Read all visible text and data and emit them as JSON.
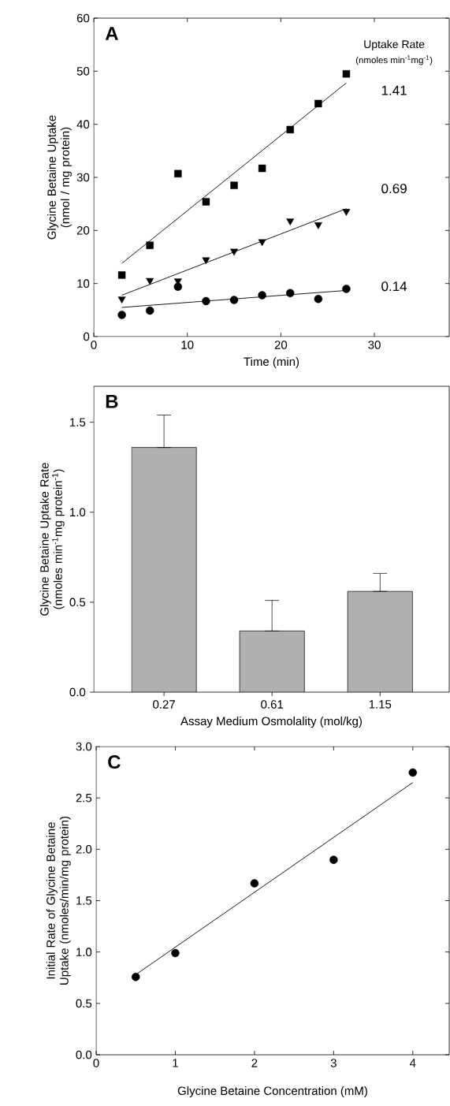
{
  "chart_data": [
    {
      "type": "scatter",
      "title": "A",
      "xlabel": "Time (min)",
      "ylabel": "Glycine Betaine Uptake (nmol / mg protein)",
      "xlim": [
        0,
        38
      ],
      "ylim": [
        0,
        60
      ],
      "xticks": [
        0,
        10,
        20,
        30
      ],
      "yticks": [
        0,
        10,
        20,
        30,
        40,
        50,
        60
      ],
      "series": [
        {
          "color": "#000000",
          "marker": "square",
          "x": [
            3,
            6,
            9,
            12,
            15,
            18,
            21,
            24,
            27
          ],
          "values": [
            11.6,
            17.2,
            30.7,
            25.4,
            28.5,
            31.7,
            39.0,
            43.9,
            49.5
          ]
        },
        {
          "color": "#000000",
          "marker": "triangle",
          "x": [
            3,
            6,
            9,
            12,
            15,
            18,
            21,
            24,
            27
          ],
          "values": [
            7.1,
            10.6,
            10.5,
            14.5,
            16.1,
            17.9,
            21.8,
            21.1,
            23.6
          ]
        },
        {
          "color": "#000000",
          "marker": "circle",
          "x": [
            3,
            6,
            9,
            12,
            15,
            18,
            21,
            24,
            27
          ],
          "values": [
            4.1,
            4.9,
            9.4,
            6.7,
            6.9,
            7.8,
            8.2,
            7.1,
            9.0
          ]
        },
        {
          "type": "line",
          "color": "#000000",
          "x": [
            3,
            27
          ],
          "values": [
            13.8,
            47.8
          ]
        },
        {
          "type": "line",
          "color": "#000000",
          "x": [
            3,
            27
          ],
          "values": [
            7.8,
            24.1
          ]
        },
        {
          "type": "line",
          "color": "#000000",
          "x": [
            3,
            27
          ],
          "values": [
            5.5,
            8.7
          ]
        }
      ],
      "annotations": [
        "Uptake Rate",
        "(nmoles min$^{-1}$mg$^{-1}$)",
        "1.41",
        "0.69",
        "0.14"
      ]
    },
    {
      "type": "bar",
      "title": "B",
      "xlabel": "Assay Medium Osmolality (mol/kg)",
      "ylabel": "Glycine Betaine Uptake Rate (nmoles min$^{-1}$mg protein$^{-1}$)",
      "categories": [
        "0.27",
        "0.61",
        "1.15"
      ],
      "values": [
        1.36,
        0.34,
        0.56
      ],
      "color": "#b0b0b0",
      "errors": [
        [
          1.36,
          1.54
        ],
        [
          0.34,
          0.51
        ],
        [
          0.56,
          0.66
        ]
      ],
      "ylim": [
        0,
        1.7
      ],
      "yticks": [
        {
          "value": 0,
          "label": "0.0"
        },
        0.5,
        {
          "value": 1,
          "label": "1.0"
        },
        1.5
      ]
    },
    {
      "type": "scatter",
      "title": "C",
      "xlabel": "Glycine Betaine Concentration (mM)",
      "ylabel": "Initial Rate of Glycine Betaine Uptake (nmoles/min/mg protein)",
      "xlim": [
        0,
        4.46
      ],
      "ylim": [
        0,
        3
      ],
      "xticks": [
        0,
        1,
        2,
        3,
        4
      ],
      "yticks": [
        {
          "value": 0,
          "label": "0.0"
        },
        0.5,
        {
          "value": 1,
          "label": "1.0"
        },
        1.5,
        {
          "value": 2,
          "label": "2.0"
        },
        2.5,
        {
          "value": 3,
          "label": "3.0"
        }
      ],
      "series": [
        {
          "color": "#000000",
          "marker": "circle",
          "x": [
            0.5,
            1,
            2,
            3,
            4
          ],
          "values": [
            0.757,
            0.99,
            1.668,
            1.898,
            2.747
          ]
        },
        {
          "type": "line",
          "color": "#000000",
          "x": [
            0.5,
            4
          ],
          "values": [
            0.78,
            2.65
          ]
        }
      ]
    }
  ]
}
